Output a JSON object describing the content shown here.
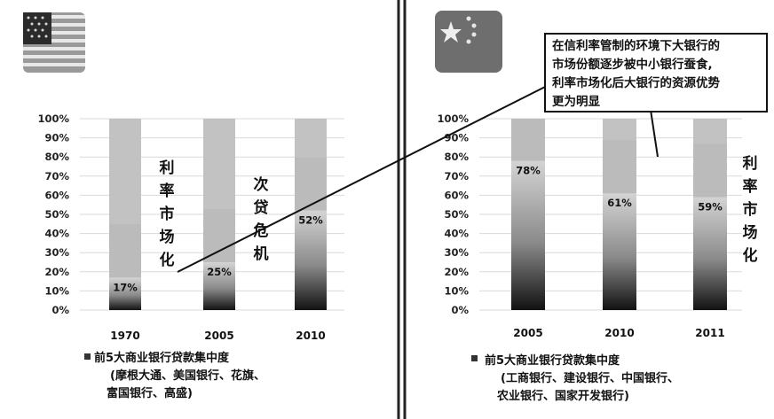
{
  "chart_data": [
    {
      "type": "bar",
      "region": "United States",
      "categories": [
        "1970",
        "2005",
        "2010"
      ],
      "values": [
        17,
        25,
        52
      ],
      "value_labels": [
        "17%",
        "25%",
        "52%"
      ],
      "ylim": [
        0,
        100
      ],
      "yticks": [
        "0%",
        "10%",
        "20%",
        "30%",
        "40%",
        "50%",
        "60%",
        "70%",
        "80%",
        "90%",
        "100%"
      ],
      "grid": true,
      "legend_label": "前5大商业银行贷款集中度",
      "legend_sub": [
        "(摩根大通、美国银行、花旗、",
        "富国银行、高盛)"
      ],
      "annotations": [
        {
          "text": "利率市场化",
          "between": [
            "1970",
            "2005"
          ]
        },
        {
          "text": "次贷危机",
          "between": [
            "2005",
            "2010"
          ]
        }
      ]
    },
    {
      "type": "bar",
      "region": "China",
      "categories": [
        "2005",
        "2010",
        "2011"
      ],
      "values": [
        78,
        61,
        59
      ],
      "value_labels": [
        "78%",
        "61%",
        "59%"
      ],
      "ylim": [
        0,
        100
      ],
      "yticks": [
        "0%",
        "10%",
        "20%",
        "30%",
        "40%",
        "50%",
        "60%",
        "70%",
        "80%",
        "90%",
        "100%"
      ],
      "grid": true,
      "legend_label": "前5大商业银行贷款集中度",
      "legend_sub": [
        "(工商银行、建设银行、中国银行、",
        "农业银行、国家开发银行)"
      ],
      "annotations": [
        {
          "text": "利率市场化",
          "position": "right"
        }
      ]
    }
  ],
  "callout": {
    "lines": [
      "在信利率管制的环境下大银行的",
      "市场份额逐步被中小银行蚕食,",
      "利率市场化后大银行的资源优势",
      "更为明显"
    ]
  },
  "flags": {
    "left": "us-flag-icon",
    "right": "china-flag-icon"
  },
  "colors": {
    "bar_top": "#c2c2c2",
    "bar_bottom": "#141414",
    "grid": "#d9d9d9",
    "divider": "#222222"
  }
}
